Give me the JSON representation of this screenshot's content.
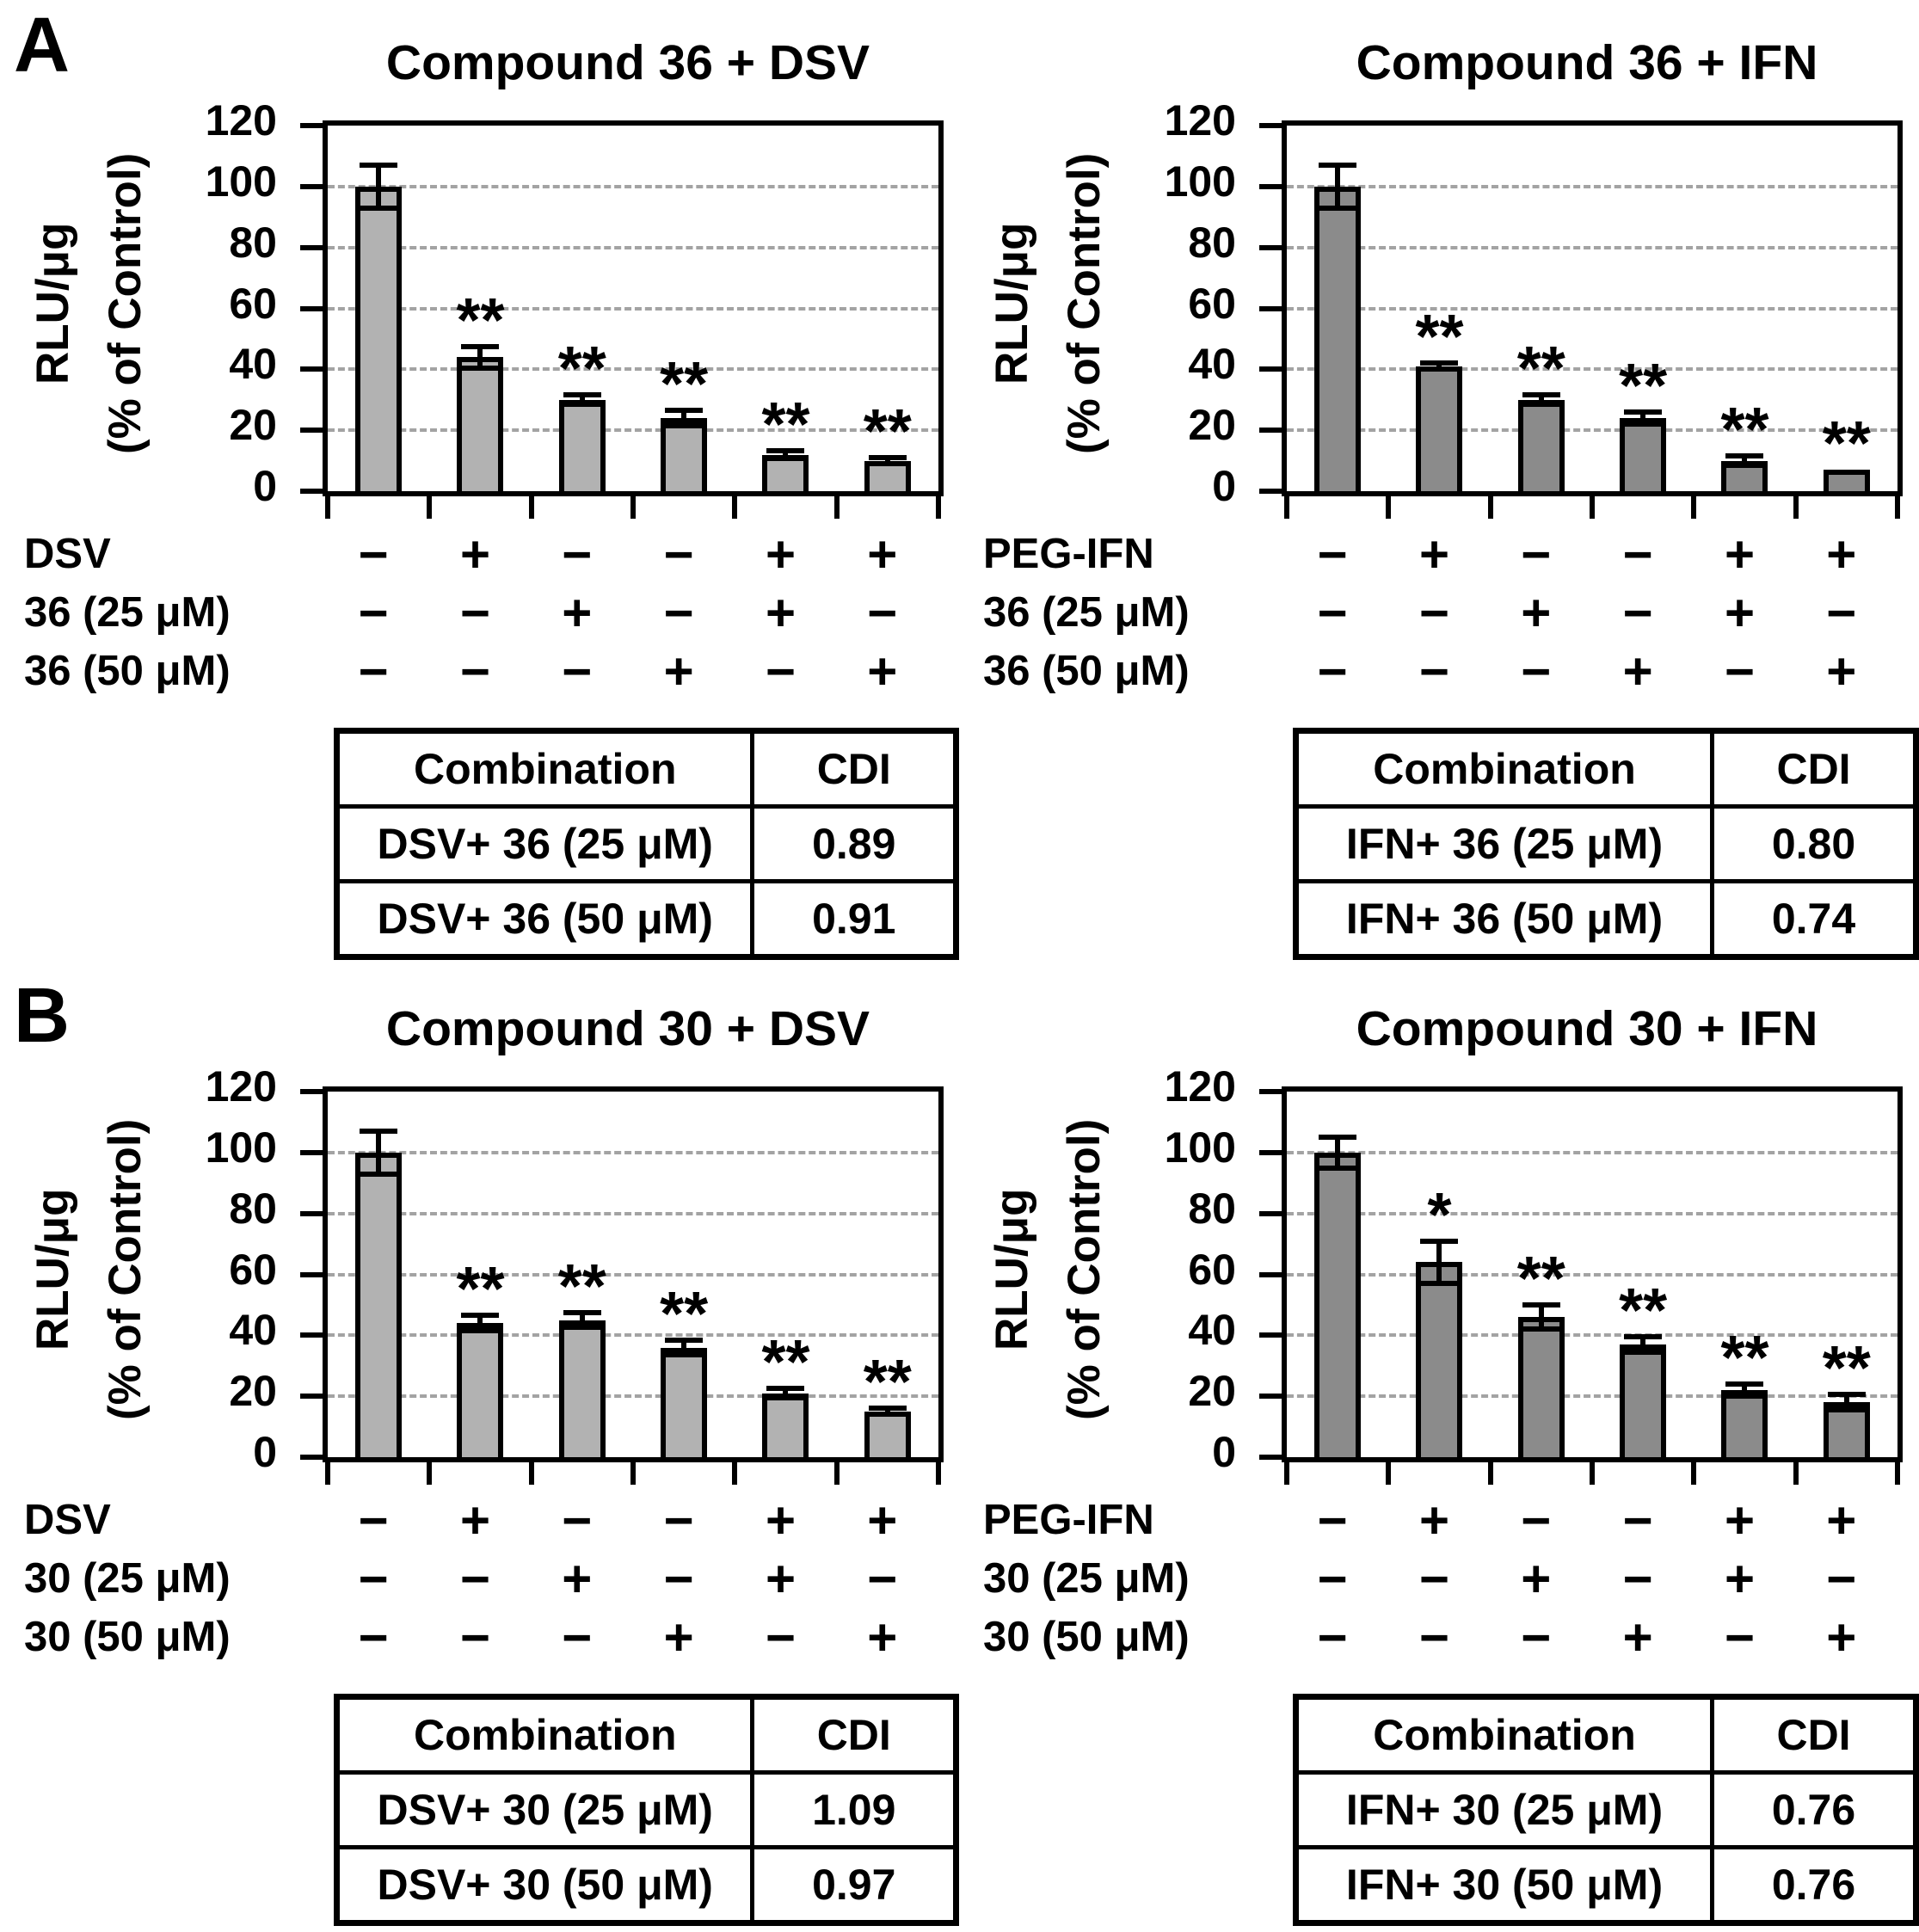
{
  "panels": {
    "a_label": "A",
    "b_label": "B"
  },
  "chart_data": [
    {
      "id": "compound-36-dsv",
      "type": "bar",
      "title": "Compound 36 + DSV",
      "ylabel_line1": "RLU/μg",
      "ylabel_line2": "(% of Control)",
      "ylim": [
        0,
        120
      ],
      "yticks": [
        "120",
        "100",
        "80",
        "60",
        "40",
        "20",
        "0"
      ],
      "gridline_values": [
        20,
        40,
        60,
        80,
        100
      ],
      "grid_style": "dashed",
      "legend_position": "none",
      "bar_color": "#b2b2b2",
      "values": [
        100,
        44,
        30,
        24,
        12,
        10
      ],
      "errors": [
        7,
        3.5,
        1.5,
        2.5,
        1.2,
        1
      ],
      "significance": [
        "",
        "**",
        "**",
        "**",
        "**",
        "**"
      ],
      "condition_rows": [
        {
          "label": "DSV",
          "signs": [
            "−",
            "+",
            "−",
            "−",
            "+",
            "+"
          ]
        },
        {
          "label": "36 (25 μM)",
          "signs": [
            "−",
            "−",
            "+",
            "−",
            "+",
            "−"
          ]
        },
        {
          "label": "36 (50 μM)",
          "signs": [
            "−",
            "−",
            "−",
            "+",
            "−",
            "+"
          ]
        }
      ],
      "table": {
        "headers": [
          "Combination",
          "CDI"
        ],
        "rows": [
          [
            "DSV+ 36 (25 μM)",
            "0.89"
          ],
          [
            "DSV+ 36 (50 μM)",
            "0.91"
          ]
        ]
      }
    },
    {
      "id": "compound-36-ifn",
      "type": "bar",
      "title": "Compound 36 + IFN",
      "ylabel_line1": "RLU/μg",
      "ylabel_line2": "(% of Control)",
      "ylim": [
        0,
        120
      ],
      "yticks": [
        "120",
        "100",
        "80",
        "60",
        "40",
        "20",
        "0"
      ],
      "gridline_values": [
        20,
        40,
        60,
        80,
        100
      ],
      "grid_style": "dashed",
      "legend_position": "none",
      "bar_color": "#8b8b8b",
      "values": [
        100,
        41,
        30,
        24,
        10,
        7
      ],
      "errors": [
        7,
        1,
        1.5,
        2,
        1.5,
        0
      ],
      "significance": [
        "",
        "**",
        "**",
        "**",
        "**",
        "**"
      ],
      "condition_rows": [
        {
          "label": "PEG-IFN",
          "signs": [
            "−",
            "+",
            "−",
            "−",
            "+",
            "+"
          ]
        },
        {
          "label": "36 (25 μM)",
          "signs": [
            "−",
            "−",
            "+",
            "−",
            "+",
            "−"
          ]
        },
        {
          "label": "36 (50 μM)",
          "signs": [
            "−",
            "−",
            "−",
            "+",
            "−",
            "+"
          ]
        }
      ],
      "table": {
        "headers": [
          "Combination",
          "CDI"
        ],
        "rows": [
          [
            "IFN+ 36 (25 μM)",
            "0.80"
          ],
          [
            "IFN+ 36 (50 μM)",
            "0.74"
          ]
        ]
      }
    },
    {
      "id": "compound-30-dsv",
      "type": "bar",
      "title": "Compound 30 + DSV",
      "ylabel_line1": "RLU/μg",
      "ylabel_line2": "(% of Control)",
      "ylim": [
        0,
        120
      ],
      "yticks": [
        "120",
        "100",
        "80",
        "60",
        "40",
        "20",
        "0"
      ],
      "gridline_values": [
        20,
        40,
        60,
        80,
        100
      ],
      "grid_style": "dashed",
      "legend_position": "none",
      "bar_color": "#b2b2b2",
      "values": [
        100,
        44,
        45,
        36,
        21,
        15
      ],
      "errors": [
        7,
        2.5,
        2.5,
        2.5,
        1.5,
        1
      ],
      "significance": [
        "",
        "**",
        "**",
        "**",
        "**",
        "**"
      ],
      "condition_rows": [
        {
          "label": "DSV",
          "signs": [
            "−",
            "+",
            "−",
            "−",
            "+",
            "+"
          ]
        },
        {
          "label": "30 (25 μM)",
          "signs": [
            "−",
            "−",
            "+",
            "−",
            "+",
            "−"
          ]
        },
        {
          "label": "30 (50 μM)",
          "signs": [
            "−",
            "−",
            "−",
            "+",
            "−",
            "+"
          ]
        }
      ],
      "table": {
        "headers": [
          "Combination",
          "CDI"
        ],
        "rows": [
          [
            "DSV+ 30 (25 μM)",
            "1.09"
          ],
          [
            "DSV+ 30 (50 μM)",
            "0.97"
          ]
        ]
      }
    },
    {
      "id": "compound-30-ifn",
      "type": "bar",
      "title": "Compound 30 + IFN",
      "ylabel_line1": "RLU/μg",
      "ylabel_line2": "(% of Control)",
      "ylim": [
        0,
        120
      ],
      "yticks": [
        "120",
        "100",
        "80",
        "60",
        "40",
        "20",
        "0"
      ],
      "gridline_values": [
        20,
        40,
        60,
        80,
        100
      ],
      "grid_style": "dashed",
      "legend_position": "none",
      "bar_color": "#8b8b8b",
      "values": [
        100,
        64,
        46,
        37,
        22,
        18
      ],
      "errors": [
        5,
        7,
        4,
        2.5,
        2,
        2.5
      ],
      "significance": [
        "",
        "*",
        "**",
        "**",
        "**",
        "**"
      ],
      "condition_rows": [
        {
          "label": "PEG-IFN",
          "signs": [
            "−",
            "+",
            "−",
            "−",
            "+",
            "+"
          ]
        },
        {
          "label": "30 (25 μM)",
          "signs": [
            "−",
            "−",
            "+",
            "−",
            "+",
            "−"
          ]
        },
        {
          "label": "30 (50 μM)",
          "signs": [
            "−",
            "−",
            "−",
            "+",
            "−",
            "+"
          ]
        }
      ],
      "table": {
        "headers": [
          "Combination",
          "CDI"
        ],
        "rows": [
          [
            "IFN+ 30 (25 μM)",
            "0.76"
          ],
          [
            "IFN+ 30 (50 μM)",
            "0.76"
          ]
        ]
      }
    }
  ]
}
